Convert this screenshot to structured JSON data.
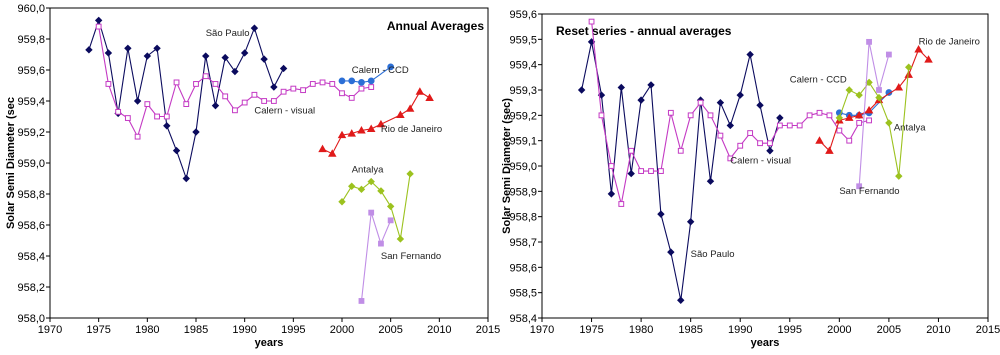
{
  "chart_data": [
    {
      "type": "line",
      "title": "Annual Averages",
      "xlabel": "years",
      "ylabel": "Solar Semi Diameter (sec",
      "xlim": [
        1970,
        2015
      ],
      "ylim": [
        958.0,
        960.0
      ],
      "xticks": [
        1970,
        1975,
        1980,
        1985,
        1990,
        1995,
        2000,
        2005,
        2010,
        2015
      ],
      "yticks": [
        958.0,
        958.2,
        958.4,
        958.6,
        958.8,
        959.0,
        959.2,
        959.4,
        959.6,
        959.8,
        960.0
      ],
      "ytick_labels": [
        "958,0",
        "958,2",
        "958,4",
        "958,6",
        "958,8",
        "959,0",
        "959,2",
        "959,4",
        "959,6",
        "959,8",
        "960,0"
      ],
      "series": [
        {
          "name": "São Paulo",
          "color": "#0b0b5e",
          "marker": "diamond",
          "filled": true,
          "x": [
            1974,
            1975,
            1976,
            1977,
            1978,
            1979,
            1980,
            1981,
            1982,
            1983,
            1984,
            1985,
            1986,
            1987,
            1988,
            1989,
            1990,
            1991,
            1992,
            1993,
            1994
          ],
          "y": [
            959.73,
            959.92,
            959.71,
            959.32,
            959.74,
            959.4,
            959.69,
            959.74,
            959.24,
            959.08,
            958.9,
            959.2,
            959.69,
            959.37,
            959.68,
            959.59,
            959.71,
            959.87,
            959.67,
            959.49,
            959.61
          ]
        },
        {
          "name": "Calern - visual",
          "color": "#c43ac4",
          "marker": "square",
          "filled": false,
          "x": [
            1975,
            1976,
            1977,
            1978,
            1979,
            1980,
            1981,
            1982,
            1983,
            1984,
            1985,
            1986,
            1987,
            1988,
            1989,
            1990,
            1991,
            1992,
            1993,
            1994,
            1995,
            1996,
            1997,
            1998,
            1999,
            2000,
            2001,
            2002,
            2003
          ],
          "y": [
            959.88,
            959.51,
            959.33,
            959.29,
            959.17,
            959.38,
            959.3,
            959.3,
            959.52,
            959.38,
            959.51,
            959.56,
            959.51,
            959.43,
            959.34,
            959.39,
            959.44,
            959.4,
            959.4,
            959.46,
            959.48,
            959.47,
            959.51,
            959.52,
            959.51,
            959.45,
            959.42,
            959.48,
            959.49
          ]
        },
        {
          "name": "Calern - CCD",
          "color": "#2c6fd6",
          "marker": "circle",
          "filled": true,
          "x": [
            2000,
            2001,
            2002,
            2003,
            2005
          ],
          "y": [
            959.53,
            959.53,
            959.52,
            959.53,
            959.62
          ]
        },
        {
          "name": "Rio de Janeiro",
          "color": "#e01a1a",
          "marker": "triangle",
          "filled": true,
          "x": [
            1998,
            1999,
            2000,
            2001,
            2002,
            2003,
            2004,
            2006,
            2007,
            2008,
            2009
          ],
          "y": [
            959.09,
            959.06,
            959.18,
            959.19,
            959.21,
            959.22,
            959.25,
            959.31,
            959.35,
            959.46,
            959.42
          ]
        },
        {
          "name": "Antalya",
          "color": "#9cc21f",
          "marker": "diamond",
          "filled": true,
          "x": [
            2000,
            2001,
            2002,
            2003,
            2004,
            2005,
            2006,
            2007
          ],
          "y": [
            958.75,
            958.85,
            958.83,
            958.88,
            958.82,
            958.72,
            958.51,
            958.93
          ]
        },
        {
          "name": "San Fernando",
          "color": "#c08ee6",
          "marker": "square",
          "filled": true,
          "x": [
            2002,
            2003,
            2004,
            2005
          ],
          "y": [
            958.11,
            958.68,
            958.48,
            958.63
          ]
        }
      ],
      "annotations": [
        {
          "text": "São Paulo",
          "x": 1986,
          "y": 959.82
        },
        {
          "text": "Calern - CCD",
          "x": 2001,
          "y": 959.58
        },
        {
          "text": "Calern - visual",
          "x": 1991,
          "y": 959.32
        },
        {
          "text": "Rio de Janeiro",
          "x": 2004,
          "y": 959.2
        },
        {
          "text": "Antalya",
          "x": 2001,
          "y": 958.94
        },
        {
          "text": "San Fernando",
          "x": 2004,
          "y": 958.38
        }
      ]
    },
    {
      "type": "line",
      "title": "Reset series - annual averages",
      "xlabel": "years",
      "ylabel": "Solar Semi Diameter (sec)",
      "xlim": [
        1970,
        2015
      ],
      "ylim": [
        958.4,
        959.6
      ],
      "xticks": [
        1970,
        1975,
        1980,
        1985,
        1990,
        1995,
        2000,
        2005,
        2010,
        2015
      ],
      "yticks": [
        958.4,
        958.5,
        958.6,
        958.7,
        958.8,
        958.9,
        959.0,
        959.1,
        959.2,
        959.3,
        959.4,
        959.5,
        959.6
      ],
      "ytick_labels": [
        "958,4",
        "958,5",
        "958,6",
        "958,7",
        "958,8",
        "958,9",
        "959,0",
        "959,1",
        "959,2",
        "959,3",
        "959,4",
        "959,5",
        "959,6"
      ],
      "series": [
        {
          "name": "São Paulo",
          "color": "#0b0b5e",
          "marker": "diamond",
          "filled": true,
          "x": [
            1974,
            1975,
            1976,
            1977,
            1978,
            1979,
            1980,
            1981,
            1982,
            1983,
            1984,
            1985,
            1986,
            1987,
            1988,
            1989,
            1990,
            1991,
            1992,
            1993,
            1994
          ],
          "y": [
            959.3,
            959.49,
            959.28,
            958.89,
            959.31,
            958.97,
            959.26,
            959.32,
            958.81,
            958.66,
            958.47,
            958.78,
            959.26,
            958.94,
            959.25,
            959.16,
            959.28,
            959.44,
            959.24,
            959.06,
            959.19
          ]
        },
        {
          "name": "Calern - visual",
          "color": "#c43ac4",
          "marker": "square",
          "filled": false,
          "x": [
            1975,
            1976,
            1977,
            1978,
            1979,
            1980,
            1981,
            1982,
            1983,
            1984,
            1985,
            1986,
            1987,
            1988,
            1989,
            1990,
            1991,
            1992,
            1993,
            1994,
            1995,
            1996,
            1997,
            1998,
            1999,
            2000,
            2001,
            2002,
            2003
          ],
          "y": [
            959.57,
            959.2,
            959.0,
            958.85,
            959.06,
            958.98,
            958.98,
            958.98,
            959.21,
            959.06,
            959.2,
            959.25,
            959.2,
            959.12,
            959.03,
            959.08,
            959.13,
            959.09,
            959.09,
            959.16,
            959.16,
            959.16,
            959.2,
            959.21,
            959.2,
            959.14,
            959.1,
            959.17,
            959.18
          ]
        },
        {
          "name": "Calern - CCD",
          "color": "#2c6fd6",
          "marker": "circle",
          "filled": true,
          "x": [
            2000,
            2001,
            2002,
            2003,
            2005
          ],
          "y": [
            959.21,
            959.2,
            959.2,
            959.21,
            959.29
          ]
        },
        {
          "name": "Rio de Janeiro",
          "color": "#e01a1a",
          "marker": "triangle",
          "filled": true,
          "x": [
            1998,
            1999,
            2000,
            2001,
            2002,
            2003,
            2004,
            2006,
            2007,
            2008,
            2009
          ],
          "y": [
            959.1,
            959.06,
            959.18,
            959.19,
            959.2,
            959.22,
            959.26,
            959.31,
            959.36,
            959.46,
            959.42
          ]
        },
        {
          "name": "Antalya",
          "color": "#9cc21f",
          "marker": "diamond",
          "filled": true,
          "x": [
            2000,
            2001,
            2002,
            2003,
            2004,
            2005,
            2006,
            2007
          ],
          "y": [
            959.19,
            959.3,
            959.28,
            959.33,
            959.27,
            959.17,
            958.96,
            959.39
          ]
        },
        {
          "name": "San Fernando",
          "color": "#c08ee6",
          "marker": "square",
          "filled": true,
          "x": [
            2002,
            2003,
            2004,
            2005
          ],
          "y": [
            958.92,
            959.49,
            959.3,
            959.44
          ]
        }
      ],
      "annotations": [
        {
          "text": "Rio de Janeiro",
          "x": 2008,
          "y": 959.48
        },
        {
          "text": "Calern - CCD",
          "x": 1995,
          "y": 959.33
        },
        {
          "text": "Antalya",
          "x": 2005.5,
          "y": 959.14
        },
        {
          "text": "Calern - visual",
          "x": 1989,
          "y": 959.01
        },
        {
          "text": "San Fernando",
          "x": 2000,
          "y": 958.89
        },
        {
          "text": "São Paulo",
          "x": 1985,
          "y": 958.64
        }
      ]
    }
  ]
}
